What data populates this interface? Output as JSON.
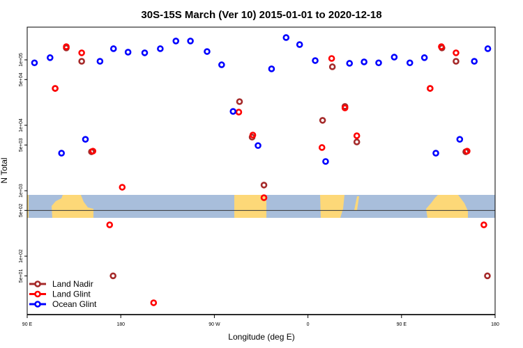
{
  "chart_data": {
    "type": "scatter",
    "title": "30S-15S March (Ver 10)   2015-01-01 to 2020-12-18",
    "xlabel": "Longitude (deg E)",
    "ylabel": "N Total",
    "x_note": "longitude unwrapped continuously from 90E through 180 to 180 (90 to 540)",
    "xlim": [
      90,
      540
    ],
    "ylim": [
      12.8,
      316000
    ],
    "yscale": "log",
    "xticks": [
      {
        "value": 90,
        "label": "90 E"
      },
      {
        "value": 180,
        "label": "180"
      },
      {
        "value": 270,
        "label": "90 W"
      },
      {
        "value": 360,
        "label": "0"
      },
      {
        "value": 450,
        "label": "90 E"
      },
      {
        "value": 540,
        "label": "180"
      }
    ],
    "yticks": [
      {
        "value": 100000,
        "label": "1e+05"
      },
      {
        "value": 50000,
        "label": "5e+04"
      },
      {
        "value": 10000,
        "label": "1e+04"
      },
      {
        "value": 5000,
        "label": "5e+03"
      },
      {
        "value": 1000,
        "label": "1e+03"
      },
      {
        "value": 500,
        "label": "5e+02"
      },
      {
        "value": 100,
        "label": "1e+02"
      },
      {
        "value": 50,
        "label": "5e+01"
      }
    ],
    "reference_line": 500,
    "legend_position": "bottom-left",
    "series": [
      {
        "name": "Land Nadir",
        "color": "#a52a2a",
        "x": [
          116.9,
          127.6,
          142.4,
          151.8,
          172.6,
          294.2,
          306.3,
          317.7,
          374.1,
          383.5,
          395.6,
          407,
          477.5,
          488.9,
          502.4,
          511.8,
          532.6
        ],
        "y": [
          36600,
          152000,
          95000,
          3940,
          50,
          23000,
          6600,
          1220,
          11900,
          78300,
          19400,
          5560,
          36600,
          152000,
          95000,
          3940,
          50
        ]
      },
      {
        "name": "Land Glint",
        "color": "#ff0000",
        "x": [
          116.9,
          127.6,
          142.4,
          153.2,
          169.3,
          181.4,
          211.6,
          293.5,
          307,
          317.7,
          373.5,
          382.8,
          395.6,
          407,
          477.5,
          488.3,
          502.4,
          513.1,
          529.2
        ],
        "y": [
          36600,
          159000,
          128000,
          4030,
          301,
          1130,
          19.4,
          15900,
          7100,
          783,
          4570,
          105000,
          18400,
          6920,
          36600,
          159000,
          128000,
          4030,
          301
        ]
      },
      {
        "name": "Ocean Glint",
        "color": "#0000ff",
        "x": [
          97,
          112,
          123,
          146,
          160,
          173,
          187,
          203,
          218,
          233,
          247,
          263,
          277,
          288,
          312,
          325,
          339,
          352,
          367,
          377,
          400,
          414,
          428,
          443,
          458,
          472,
          483,
          506,
          520,
          533
        ],
        "y": [
          90000,
          108000,
          3750,
          6100,
          95000,
          148000,
          131000,
          128000,
          148000,
          194000,
          194000,
          134000,
          84000,
          16300,
          4900,
          72800,
          219000,
          171000,
          97500,
          2800,
          88500,
          93000,
          90000,
          110000,
          90000,
          108000,
          3750,
          6100,
          95000,
          148000
        ]
      }
    ],
    "background_map": {
      "ocean_color": "#a8bedb",
      "land_color": "#fdd878"
    }
  }
}
